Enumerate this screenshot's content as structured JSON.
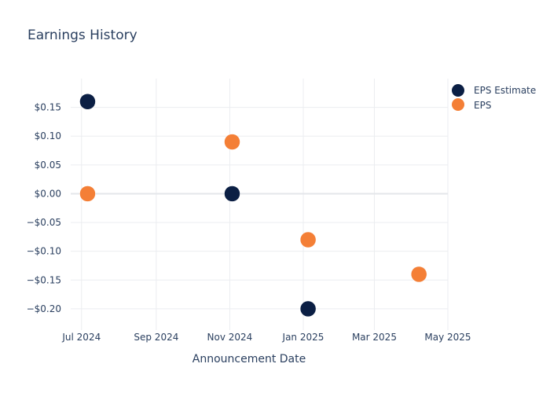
{
  "colors": {
    "estimate": "#0b1f44",
    "eps": "#f47f36",
    "text": "#2a3f5f"
  },
  "chart_data": {
    "type": "scatter",
    "title": "Earnings History",
    "xlabel": "Announcement Date",
    "ylabel": "",
    "x_ticks": [
      {
        "date": "2024-07-01",
        "label": "Jul 2024"
      },
      {
        "date": "2024-09-01",
        "label": "Sep 2024"
      },
      {
        "date": "2024-11-01",
        "label": "Nov 2024"
      },
      {
        "date": "2025-01-01",
        "label": "Jan 2025"
      },
      {
        "date": "2025-03-01",
        "label": "Mar 2025"
      },
      {
        "date": "2025-05-01",
        "label": "May 2025"
      }
    ],
    "y_ticks": [
      {
        "value": 0.15,
        "label": "$0.15"
      },
      {
        "value": 0.1,
        "label": "$0.10"
      },
      {
        "value": 0.05,
        "label": "$0.05"
      },
      {
        "value": 0.0,
        "label": "$0.00"
      },
      {
        "value": -0.05,
        "label": "−$0.05"
      },
      {
        "value": -0.1,
        "label": "−$0.10"
      },
      {
        "value": -0.15,
        "label": "−$0.15"
      },
      {
        "value": -0.2,
        "label": "−$0.20"
      }
    ],
    "xlim": [
      "2024-06-22",
      "2025-05-01"
    ],
    "ylim": [
      -0.237,
      0.2
    ],
    "grid": true,
    "legend_position": "top-right",
    "series": [
      {
        "name": "EPS Estimate",
        "color": "#0b1f44",
        "points": [
          {
            "x": "2024-07-06",
            "y": 0.16
          },
          {
            "x": "2024-11-03",
            "y": 0.0
          },
          {
            "x": "2025-01-05",
            "y": -0.2
          },
          {
            "x": "2025-04-07",
            "y": -0.14
          }
        ]
      },
      {
        "name": "EPS",
        "color": "#f47f36",
        "points": [
          {
            "x": "2024-07-06",
            "y": 0.0
          },
          {
            "x": "2024-11-03",
            "y": 0.09
          },
          {
            "x": "2025-01-05",
            "y": -0.08
          },
          {
            "x": "2025-04-07",
            "y": -0.14
          }
        ]
      }
    ]
  }
}
